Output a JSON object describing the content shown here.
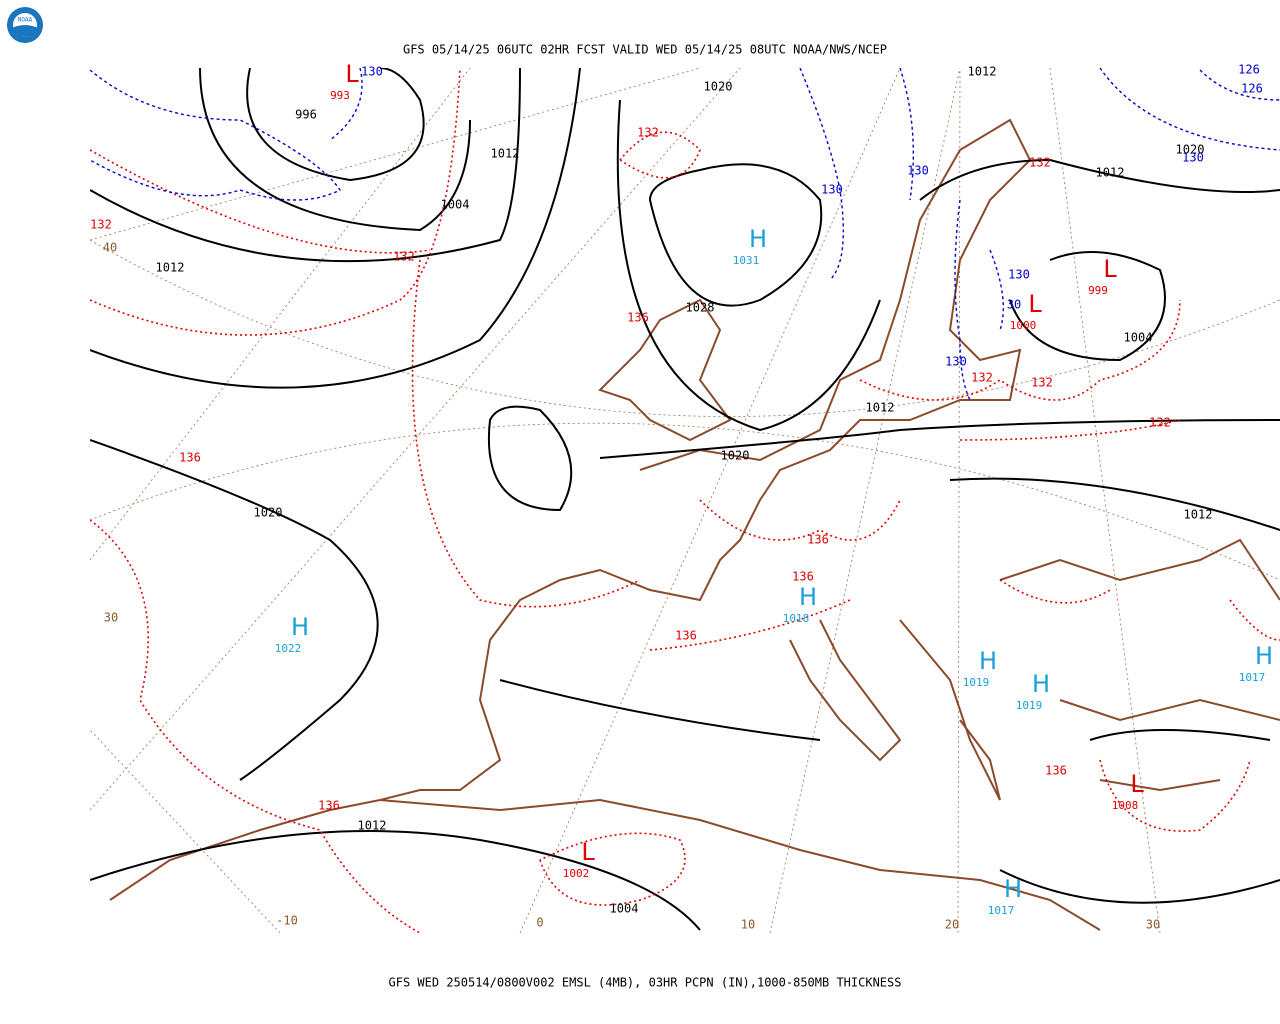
{
  "header": {
    "title": "GFS 05/14/25 06UTC 02HR FCST VALID WED 05/14/25 08UTC NOAA/NWS/NCEP"
  },
  "footer": {
    "caption": "GFS WED 250514/0800V002 EMSL (4MB), 03HR PCPN (IN),1000-850MB THICKNESS"
  },
  "logo": {
    "text": "NOAA"
  },
  "pressure_centers": [
    {
      "symbol": "L",
      "value": 993
    },
    {
      "symbol": "H",
      "value": 1031
    },
    {
      "symbol": "L",
      "value": 999
    },
    {
      "symbol": "L",
      "value": 1000
    },
    {
      "symbol": "H",
      "value": 1022
    },
    {
      "symbol": "H",
      "value": 1018
    },
    {
      "symbol": "H",
      "value": 1019
    },
    {
      "symbol": "H",
      "value": 1019
    },
    {
      "symbol": "H",
      "value": 1017
    },
    {
      "symbol": "L",
      "value": 1008
    },
    {
      "symbol": "L",
      "value": 1002
    },
    {
      "symbol": "H",
      "value": 1017
    }
  ],
  "isobar_labels": [
    1020,
    1012,
    996,
    1012,
    1004,
    1012,
    1028,
    1012,
    1020,
    1004,
    1012,
    1020,
    1020,
    1012,
    1012,
    1004
  ],
  "thickness_labels_red": [
    132,
    132,
    132,
    136,
    132,
    132,
    132,
    132,
    136,
    136,
    136,
    136,
    136,
    136
  ],
  "thickness_labels_blue": [
    130,
    130,
    130,
    130,
    30,
    130,
    130,
    126,
    126
  ],
  "grid_labels": [
    40,
    30,
    -10,
    0,
    10,
    20,
    30
  ]
}
